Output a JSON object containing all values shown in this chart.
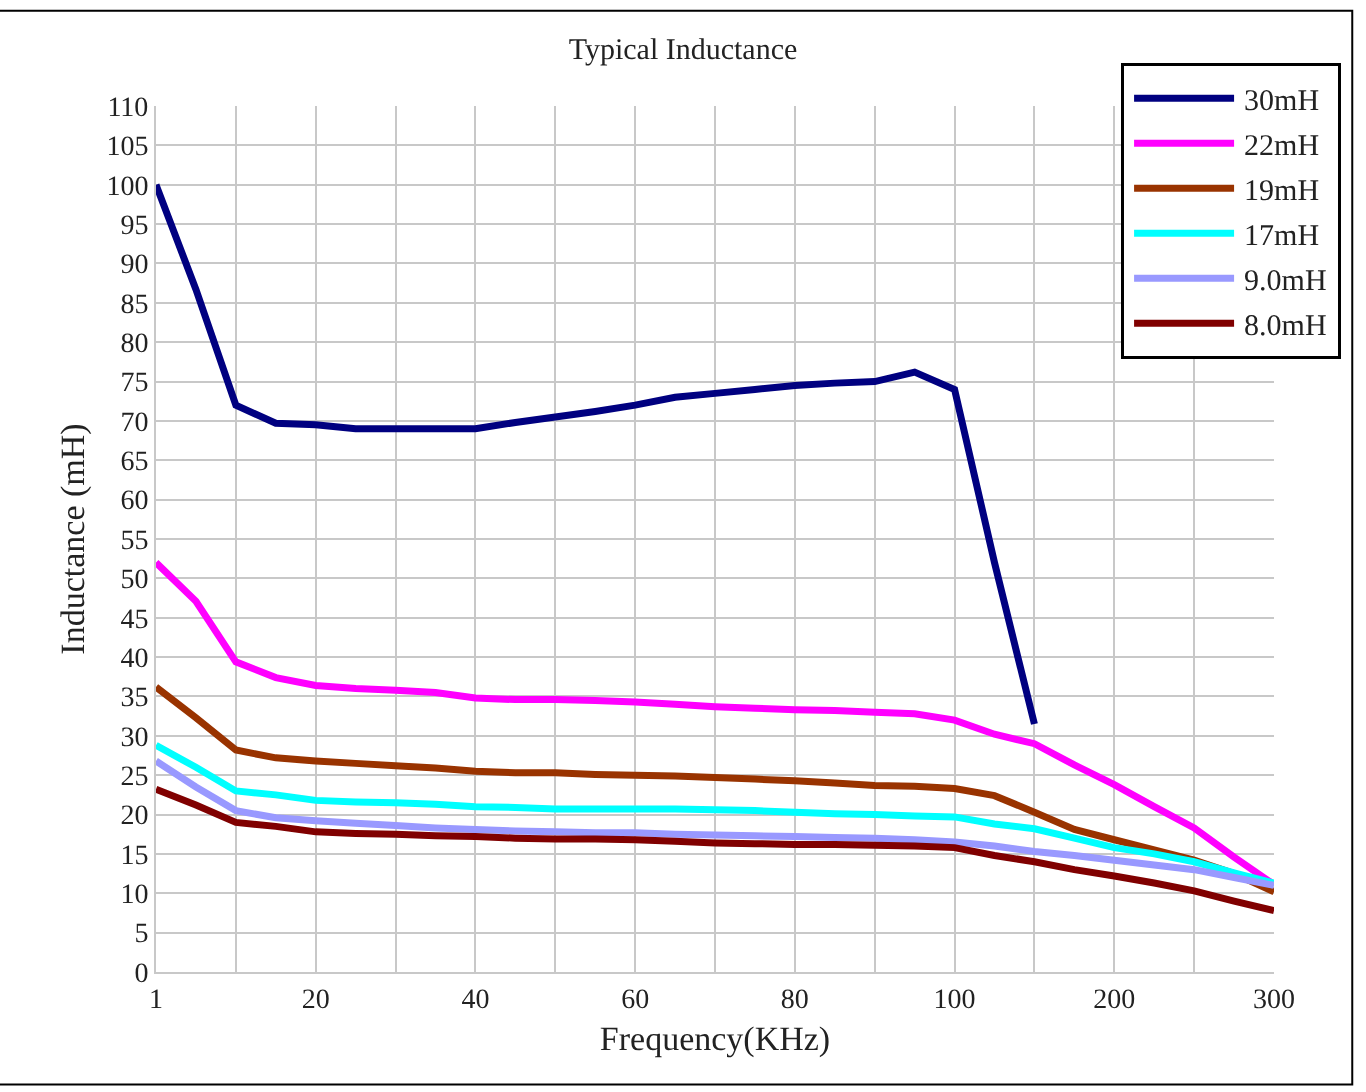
{
  "chart_data": {
    "type": "line",
    "title": "Typical Inductance",
    "xlabel": "Frequency(KHz)",
    "ylabel": "Inductance (mH)",
    "categories": [
      "1",
      null,
      null,
      null,
      "20",
      null,
      null,
      null,
      "40",
      null,
      null,
      null,
      "60",
      null,
      null,
      null,
      "80",
      null,
      null,
      null,
      "100",
      null,
      null,
      null,
      "200",
      null,
      null,
      null,
      "300"
    ],
    "ylim": [
      0,
      110
    ],
    "yticks": [
      0,
      5,
      10,
      15,
      20,
      25,
      30,
      35,
      40,
      45,
      50,
      55,
      60,
      65,
      70,
      75,
      80,
      85,
      90,
      95,
      100,
      105,
      110
    ],
    "grid": true,
    "legend": "top right",
    "marker": "none",
    "line_style": "solid",
    "series": [
      {
        "name": "30mH",
        "color": "#000080",
        "values": [
          100,
          86.7,
          72,
          69.7,
          69.5,
          69,
          69,
          69,
          69,
          69.8,
          70.5,
          71.2,
          72,
          73,
          73.5,
          74,
          74.5,
          74.8,
          75,
          76.2,
          74,
          52,
          31.5,
          null,
          null,
          null,
          null,
          null,
          null
        ]
      },
      {
        "name": "22mH",
        "color": "#ff00ff",
        "values": [
          52,
          47.1,
          39.4,
          37.4,
          36.4,
          36,
          35.8,
          35.5,
          34.8,
          34.6,
          34.6,
          34.5,
          34.3,
          34,
          33.7,
          33.5,
          33.3,
          33.2,
          33,
          32.8,
          32,
          30.2,
          29,
          26.3,
          23.8,
          21,
          18.3,
          14.6,
          11.1
        ]
      },
      {
        "name": "19mH",
        "color": "#993300",
        "values": [
          36.2,
          32.3,
          28.2,
          27.2,
          26.8,
          26.5,
          26.2,
          25.9,
          25.5,
          25.3,
          25.3,
          25.1,
          25,
          24.9,
          24.7,
          24.5,
          24.3,
          24,
          23.7,
          23.6,
          23.3,
          22.4,
          20.3,
          18.1,
          16.8,
          15.5,
          14.2,
          12.5,
          10.2
        ]
      },
      {
        "name": "17mH",
        "color": "#00ffff",
        "values": [
          28.8,
          26,
          23,
          22.5,
          21.8,
          21.6,
          21.5,
          21.3,
          21,
          20.9,
          20.7,
          20.7,
          20.7,
          20.7,
          20.6,
          20.5,
          20.3,
          20.1,
          20,
          19.8,
          19.7,
          18.8,
          18.2,
          17,
          15.8,
          15,
          14,
          12.6,
          11.3
        ]
      },
      {
        "name": "9.0mH",
        "color": "#9999ff",
        "values": [
          26.8,
          23.5,
          20.5,
          19.6,
          19.2,
          18.9,
          18.6,
          18.3,
          18.1,
          17.9,
          17.8,
          17.7,
          17.7,
          17.5,
          17.4,
          17.3,
          17.2,
          17.1,
          17,
          16.8,
          16.5,
          16,
          15.3,
          14.8,
          14.2,
          13.6,
          13,
          12,
          11
        ]
      },
      {
        "name": "8.0mH",
        "color": "#800000",
        "values": [
          23.2,
          21.2,
          19,
          18.5,
          17.8,
          17.6,
          17.5,
          17.3,
          17.2,
          17,
          16.9,
          16.9,
          16.8,
          16.6,
          16.4,
          16.3,
          16.2,
          16.2,
          16.1,
          16,
          15.8,
          14.8,
          14,
          13,
          12.2,
          11.3,
          10.3,
          9,
          7.8
        ]
      }
    ]
  }
}
